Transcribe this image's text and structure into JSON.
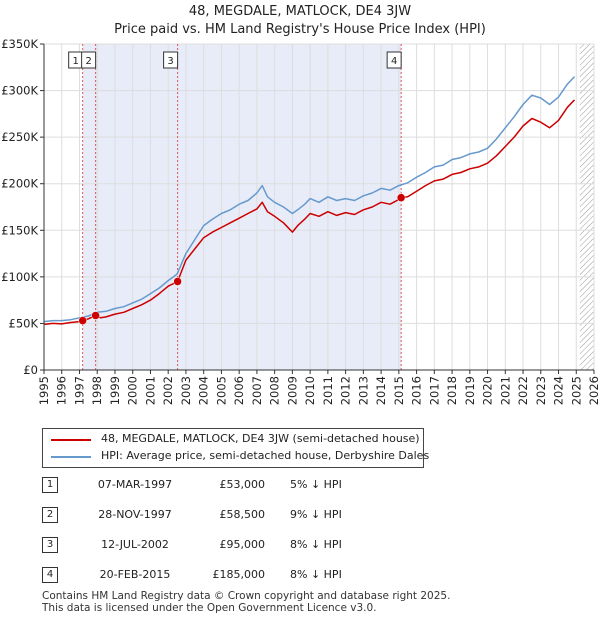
{
  "title_line1": "48, MEGDALE, MATLOCK, DE4 3JW",
  "title_line2": "Price paid vs. HM Land Registry's House Price Index (HPI)",
  "colors": {
    "property": "#cc0000",
    "hpi": "#6699cc",
    "shade": "#e8ecf8",
    "hatch": "#999999",
    "vline": "#e05555"
  },
  "legend": {
    "property_label": "48, MEGDALE, MATLOCK, DE4 3JW (semi-detached house)",
    "hpi_label": "HPI: Average price, semi-detached house, Derbyshire Dales"
  },
  "transactions": [
    {
      "num": "1",
      "date": "07-MAR-1997",
      "price": "£53,000",
      "hpi_diff": "5% ↓ HPI"
    },
    {
      "num": "2",
      "date": "28-NOV-1997",
      "price": "£58,500",
      "hpi_diff": "9% ↓ HPI"
    },
    {
      "num": "3",
      "date": "12-JUL-2002",
      "price": "£95,000",
      "hpi_diff": "8% ↓ HPI"
    },
    {
      "num": "4",
      "date": "20-FEB-2015",
      "price": "£185,000",
      "hpi_diff": "8% ↓ HPI"
    }
  ],
  "footer_line1": "Contains HM Land Registry data © Crown copyright and database right 2025.",
  "footer_line2": "This data is licensed under the Open Government Licence v3.0.",
  "chart_data": {
    "type": "line",
    "title": "48, MEGDALE, MATLOCK, DE4 3JW — Price paid vs. HM Land Registry's House Price Index (HPI)",
    "xlabel": "",
    "ylabel": "",
    "xlim": [
      1995,
      2026
    ],
    "ylim": [
      0,
      350000
    ],
    "x_ticks": [
      "1995",
      "1996",
      "1997",
      "1998",
      "1999",
      "2000",
      "2001",
      "2002",
      "2003",
      "2004",
      "2005",
      "2006",
      "2007",
      "2008",
      "2009",
      "2010",
      "2011",
      "2012",
      "2013",
      "2014",
      "2015",
      "2016",
      "2017",
      "2018",
      "2019",
      "2020",
      "2021",
      "2022",
      "2023",
      "2024",
      "2025",
      "2026"
    ],
    "y_ticks": [
      {
        "value": 0,
        "label": "£0"
      },
      {
        "value": 50000,
        "label": "£50K"
      },
      {
        "value": 100000,
        "label": "£100K"
      },
      {
        "value": 150000,
        "label": "£150K"
      },
      {
        "value": 200000,
        "label": "£200K"
      },
      {
        "value": 250000,
        "label": "£250K"
      },
      {
        "value": 300000,
        "label": "£300K"
      },
      {
        "value": 350000,
        "label": "£350K"
      }
    ],
    "shaded_period": [
      1997.18,
      2015.13
    ],
    "future_hatch_from": 2025.2,
    "markers": [
      {
        "label": "1",
        "x": 1997.18,
        "y": 53000
      },
      {
        "label": "2",
        "x": 1997.91,
        "y": 58500
      },
      {
        "label": "3",
        "x": 2002.53,
        "y": 95000
      },
      {
        "label": "4",
        "x": 2015.13,
        "y": 185000
      }
    ],
    "series": [
      {
        "name": "48, MEGDALE, MATLOCK, DE4 3JW (semi-detached house)",
        "color": "#cc0000",
        "x": [
          1995,
          1995.5,
          1996,
          1996.5,
          1997,
          1997.18,
          1997.5,
          1997.91,
          1998.2,
          1998.5,
          1999,
          1999.5,
          2000,
          2000.5,
          2001,
          2001.5,
          2002,
          2002.53,
          2003,
          2003.5,
          2004,
          2004.5,
          2005,
          2005.5,
          2006,
          2006.5,
          2007,
          2007.3,
          2007.6,
          2008,
          2008.5,
          2009,
          2009.3,
          2009.7,
          2010,
          2010.5,
          2011,
          2011.5,
          2012,
          2012.5,
          2013,
          2013.5,
          2014,
          2014.5,
          2015,
          2015.13,
          2015.5,
          2016,
          2016.5,
          2017,
          2017.5,
          2018,
          2018.5,
          2019,
          2019.5,
          2020,
          2020.5,
          2021,
          2021.5,
          2022,
          2022.5,
          2023,
          2023.5,
          2024,
          2024.5,
          2024.9
        ],
        "y": [
          49000,
          50000,
          49500,
          51000,
          52000,
          53000,
          55000,
          58500,
          56000,
          57000,
          60000,
          62000,
          66000,
          70000,
          75000,
          82000,
          90000,
          95000,
          118000,
          130000,
          142000,
          148000,
          153000,
          158000,
          163000,
          168000,
          173000,
          180000,
          170000,
          165000,
          158000,
          148000,
          155000,
          162000,
          168000,
          165000,
          170000,
          166000,
          169000,
          167000,
          172000,
          175000,
          180000,
          178000,
          183000,
          185000,
          186000,
          192000,
          198000,
          203000,
          205000,
          210000,
          212000,
          216000,
          218000,
          222000,
          230000,
          240000,
          250000,
          262000,
          270000,
          266000,
          260000,
          268000,
          282000,
          290000
        ]
      },
      {
        "name": "HPI: Average price, semi-detached house, Derbyshire Dales",
        "color": "#6699cc",
        "x": [
          1995,
          1995.5,
          1996,
          1996.5,
          1997,
          1997.5,
          1998,
          1998.5,
          1999,
          1999.5,
          2000,
          2000.5,
          2001,
          2001.5,
          2002,
          2002.5,
          2003,
          2003.5,
          2004,
          2004.5,
          2005,
          2005.5,
          2006,
          2006.5,
          2007,
          2007.3,
          2007.6,
          2008,
          2008.5,
          2009,
          2009.3,
          2009.7,
          2010,
          2010.5,
          2011,
          2011.5,
          2012,
          2012.5,
          2013,
          2013.5,
          2014,
          2014.5,
          2015,
          2015.5,
          2016,
          2016.5,
          2017,
          2017.5,
          2018,
          2018.5,
          2019,
          2019.5,
          2020,
          2020.5,
          2021,
          2021.5,
          2022,
          2022.5,
          2023,
          2023.5,
          2024,
          2024.5,
          2024.9
        ],
        "y": [
          52000,
          53000,
          53000,
          54000,
          56000,
          58000,
          62000,
          63000,
          66000,
          68000,
          72000,
          76000,
          82000,
          88000,
          96000,
          103000,
          125000,
          140000,
          155000,
          162000,
          168000,
          172000,
          178000,
          182000,
          190000,
          198000,
          186000,
          180000,
          175000,
          168000,
          172000,
          178000,
          184000,
          180000,
          186000,
          182000,
          184000,
          182000,
          187000,
          190000,
          195000,
          193000,
          198000,
          201000,
          207000,
          212000,
          218000,
          220000,
          226000,
          228000,
          232000,
          234000,
          238000,
          248000,
          260000,
          272000,
          285000,
          295000,
          292000,
          285000,
          293000,
          307000,
          315000
        ]
      }
    ]
  }
}
